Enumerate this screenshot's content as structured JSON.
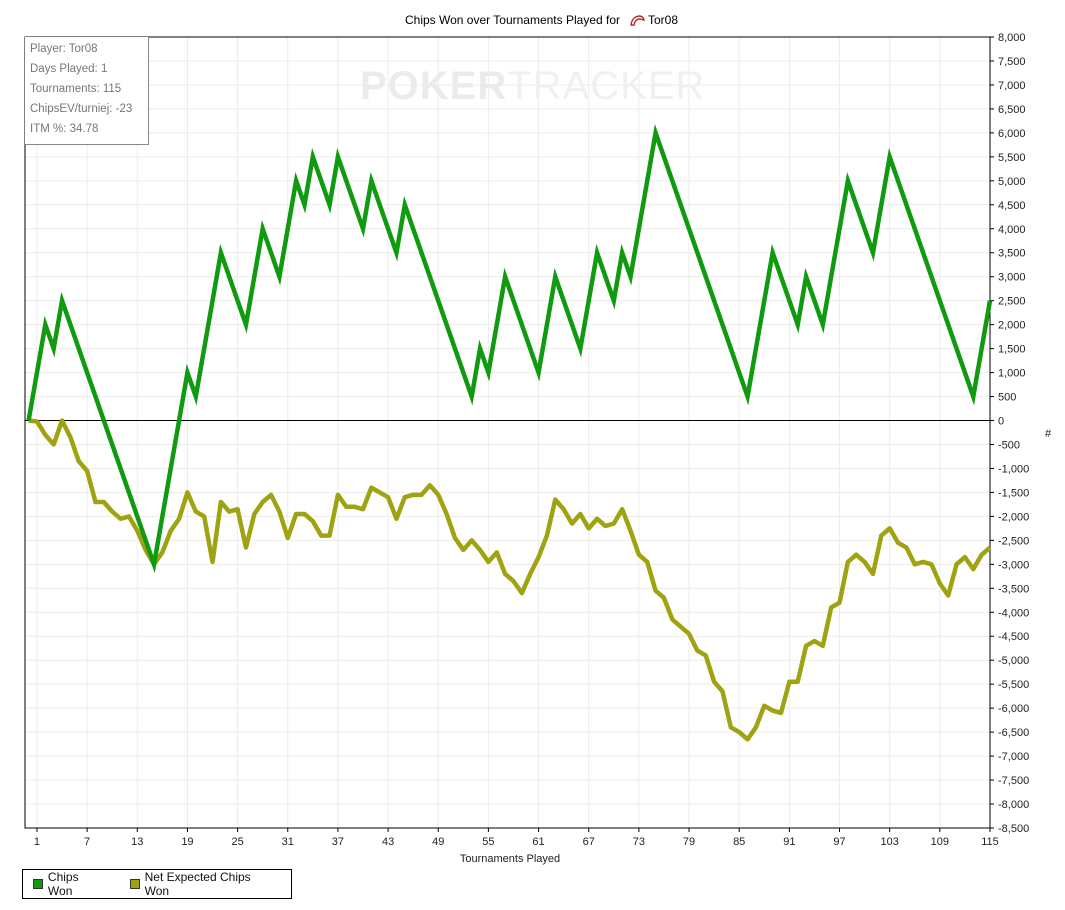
{
  "watermark": {
    "part1": "POKER",
    "part2": "TRACKER"
  },
  "info_box": [
    "Player: Tor08",
    "Days Played: 1",
    "Tournaments: 115",
    "ChipsEV/turniej: -23",
    "ITM %: 34.78"
  ],
  "chart_data": {
    "type": "line",
    "title": "Chips Won over Tournaments Played for",
    "title_player": "Tor08",
    "xlabel": "Tournaments Played",
    "ylabel": "#",
    "xlim": [
      0,
      115
    ],
    "ylim": [
      -8500,
      8000
    ],
    "x_ticks": [
      1,
      7,
      13,
      19,
      25,
      31,
      37,
      43,
      49,
      55,
      61,
      67,
      73,
      79,
      85,
      91,
      97,
      103,
      109,
      115
    ],
    "y_ticks": [
      8000,
      7500,
      7000,
      6500,
      6000,
      5500,
      5000,
      4500,
      4000,
      3500,
      3000,
      2500,
      2000,
      1500,
      1000,
      500,
      0,
      -500,
      -1000,
      -1500,
      -2000,
      -2500,
      -3000,
      -3500,
      -4000,
      -4500,
      -5000,
      -5500,
      -6000,
      -6500,
      -7000,
      -7500,
      -8000,
      -8500
    ],
    "grid": true,
    "legend_position": "bottom-left",
    "series": [
      {
        "name": "Chips Won",
        "color": "#0f9a0f",
        "points": [
          [
            0,
            0
          ],
          [
            2,
            2000
          ],
          [
            3,
            1500
          ],
          [
            4,
            2500
          ],
          [
            15,
            -3000
          ],
          [
            19,
            1000
          ],
          [
            20,
            500
          ],
          [
            23,
            3500
          ],
          [
            26,
            2000
          ],
          [
            28,
            4000
          ],
          [
            30,
            3000
          ],
          [
            32,
            5000
          ],
          [
            33,
            4500
          ],
          [
            34,
            5500
          ],
          [
            36,
            4500
          ],
          [
            37,
            5500
          ],
          [
            40,
            4000
          ],
          [
            41,
            5000
          ],
          [
            44,
            3500
          ],
          [
            45,
            4500
          ],
          [
            53,
            500
          ],
          [
            54,
            1500
          ],
          [
            55,
            1000
          ],
          [
            57,
            3000
          ],
          [
            61,
            1000
          ],
          [
            63,
            3000
          ],
          [
            66,
            1500
          ],
          [
            68,
            3500
          ],
          [
            70,
            2500
          ],
          [
            71,
            3500
          ],
          [
            72,
            3000
          ],
          [
            75,
            6000
          ],
          [
            86,
            500
          ],
          [
            89,
            3500
          ],
          [
            92,
            2000
          ],
          [
            93,
            3000
          ],
          [
            95,
            2000
          ],
          [
            98,
            5000
          ],
          [
            101,
            3500
          ],
          [
            103,
            5500
          ],
          [
            113,
            500
          ],
          [
            115,
            2500
          ]
        ]
      },
      {
        "name": "Net Expected Chips Won",
        "color": "#9fa312",
        "values": [
          0,
          -20,
          -300,
          -500,
          0,
          -350,
          -850,
          -1050,
          -1700,
          -1700,
          -1900,
          -2050,
          -2000,
          -2300,
          -2700,
          -3000,
          -2750,
          -2300,
          -2050,
          -1500,
          -1900,
          -2000,
          -2950,
          -1700,
          -1900,
          -1850,
          -2650,
          -1950,
          -1700,
          -1550,
          -1900,
          -2450,
          -1950,
          -1950,
          -2100,
          -2400,
          -2400,
          -1550,
          -1800,
          -1800,
          -1850,
          -1400,
          -1500,
          -1600,
          -2050,
          -1600,
          -1550,
          -1550,
          -1350,
          -1550,
          -1950,
          -2450,
          -2700,
          -2500,
          -2700,
          -2950,
          -2750,
          -3200,
          -3350,
          -3600,
          -3200,
          -2850,
          -2400,
          -1650,
          -1850,
          -2150,
          -1950,
          -2250,
          -2050,
          -2200,
          -2150,
          -1850,
          -2300,
          -2800,
          -2950,
          -3550,
          -3700,
          -4150,
          -4300,
          -4450,
          -4800,
          -4900,
          -5450,
          -5650,
          -6400,
          -6500,
          -6650,
          -6400,
          -5950,
          -6050,
          -6100,
          -5450,
          -5450,
          -4700,
          -4600,
          -4700,
          -3900,
          -3800,
          -2950,
          -2800,
          -2950,
          -3200,
          -2400,
          -2250,
          -2550,
          -2650,
          -3000,
          -2950,
          -3000,
          -3400,
          -3650,
          -3000,
          -2850,
          -3100,
          -2800,
          -2650
        ]
      }
    ]
  }
}
